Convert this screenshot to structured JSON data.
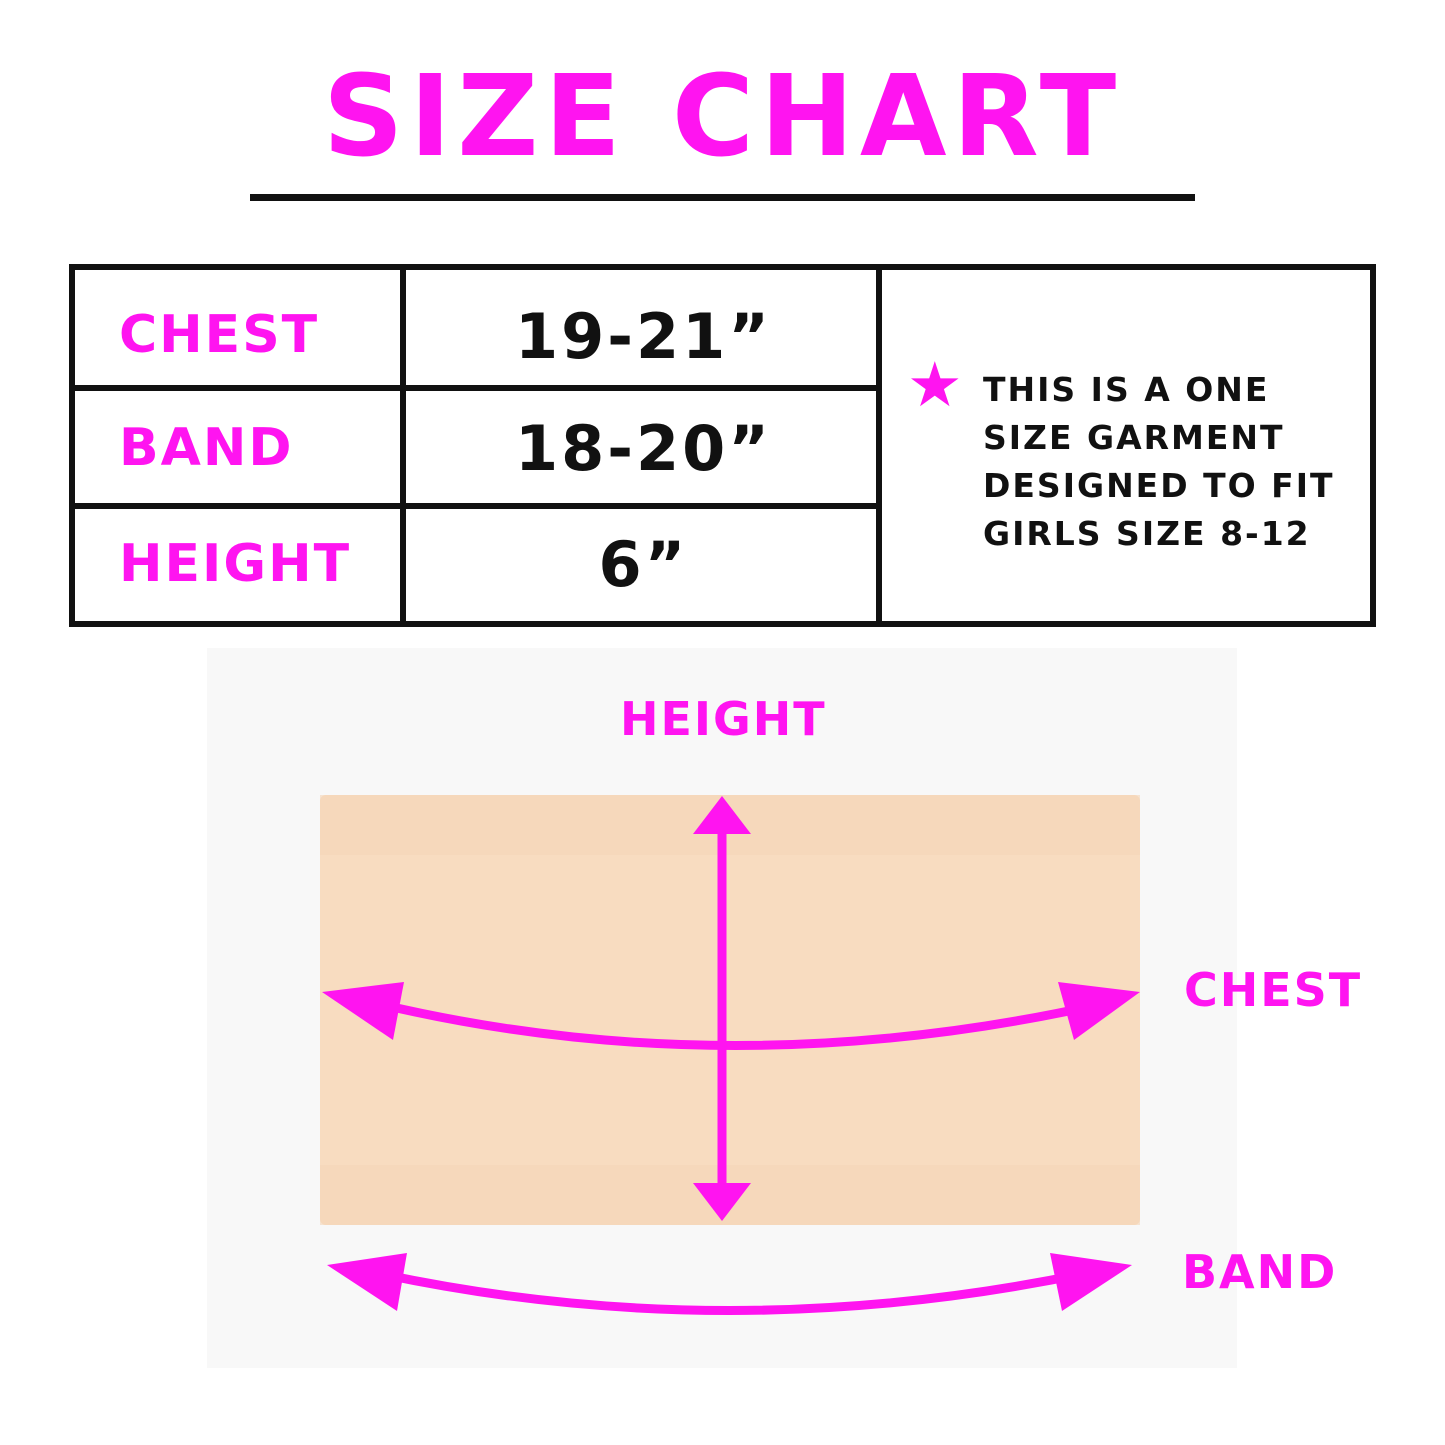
{
  "title": "SIZE CHART",
  "accent_color": "#ff14f0",
  "table": {
    "rows": [
      {
        "label": "CHEST",
        "value": "19-21”"
      },
      {
        "label": "BAND",
        "value": "18-20”"
      },
      {
        "label": "HEIGHT",
        "value": "6”"
      }
    ],
    "note_icon": "star-icon",
    "note": "THIS IS A ONE\nSIZE GARMENT\nDESIGNED TO FIT\nGIRLS SIZE 8-12"
  },
  "diagram": {
    "height_label": "HEIGHT",
    "chest_label": "CHEST",
    "band_label": "BAND",
    "garment_color": "#f8dcc0"
  }
}
